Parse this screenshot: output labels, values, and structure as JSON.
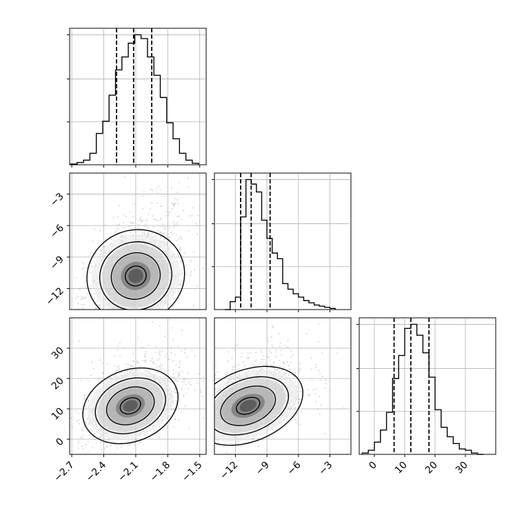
{
  "chart_data": {
    "type": "corner",
    "grid": true,
    "parameters": [
      {
        "ticks": [
          "−2.7",
          "−2.4",
          "−2.1",
          "−1.8",
          "−1.5"
        ],
        "tick_values": [
          -2.7,
          -2.4,
          -2.1,
          -1.8,
          -1.5
        ],
        "range": [
          -2.72,
          -1.44
        ]
      },
      {
        "ticks": [
          "−12",
          "−9",
          "−6",
          "−3"
        ],
        "tick_values": [
          -12,
          -9,
          -6,
          -3
        ],
        "range": [
          -14.0,
          -1.0
        ]
      },
      {
        "ticks": [
          "0",
          "10",
          "20",
          "30"
        ],
        "tick_values": [
          0,
          10,
          20,
          30
        ],
        "range": [
          -5.0,
          40.0
        ]
      }
    ],
    "histograms": [
      {
        "param": 0,
        "bin_edges": [
          -2.71,
          -2.65,
          -2.59,
          -2.53,
          -2.47,
          -2.41,
          -2.35,
          -2.29,
          -2.23,
          -2.17,
          -2.11,
          -2.05,
          -1.99,
          -1.93,
          -1.87,
          -1.81,
          -1.75,
          -1.69,
          -1.63,
          -1.57,
          -1.51
        ],
        "counts": [
          1,
          3,
          6,
          15,
          41,
          57,
          91,
          124,
          141,
          159,
          170,
          165,
          141,
          117,
          88,
          55,
          34,
          15,
          6,
          2
        ],
        "quantiles": [
          -2.28,
          -2.12,
          -1.95
        ]
      },
      {
        "param": 1,
        "bin_edges": [
          -13.0,
          -12.5,
          -12.0,
          -11.5,
          -11.0,
          -10.5,
          -10.0,
          -9.5,
          -9.0,
          -8.5,
          -8.0,
          -7.5,
          -7.0,
          -6.5,
          -6.0,
          -5.5,
          -5.0,
          -4.5,
          -4.0,
          -3.5,
          -3.0,
          -2.5
        ],
        "counts": [
          0,
          7,
          11,
          82,
          115,
          111,
          104,
          79,
          63,
          50,
          45,
          23,
          18,
          14,
          11,
          8,
          6,
          4,
          3,
          2,
          1
        ],
        "quantiles": [
          -11.5,
          -10.5,
          -8.7
        ]
      },
      {
        "param": 2,
        "bin_edges": [
          -4,
          -2,
          0,
          2,
          4,
          6,
          8,
          10,
          12,
          14,
          16,
          18,
          20,
          22,
          24,
          26,
          28,
          30,
          32,
          34,
          36
        ],
        "counts": [
          1,
          3,
          9,
          18,
          31,
          56,
          73,
          93,
          96,
          88,
          75,
          57,
          33,
          20,
          13,
          8,
          4,
          3,
          1,
          0
        ],
        "quantiles": [
          6.5,
          12.0,
          18.0
        ]
      }
    ],
    "pairs": [
      {
        "x_param": 0,
        "y_param": 1,
        "mode": [
          -2.1,
          -10.8
        ],
        "spread": [
          0.22,
          2.6
        ]
      },
      {
        "x_param": 0,
        "y_param": 2,
        "mode": [
          -2.15,
          11.0
        ],
        "spread": [
          0.22,
          7.0
        ]
      },
      {
        "x_param": 1,
        "y_param": 2,
        "mode": [
          -10.8,
          11.0
        ],
        "spread": [
          2.6,
          7.0
        ]
      }
    ]
  },
  "colors": {
    "line": "#000000",
    "grid": "#b0b0b0",
    "points": "#bdbdbd",
    "density_dark": "#3a3a3a"
  }
}
